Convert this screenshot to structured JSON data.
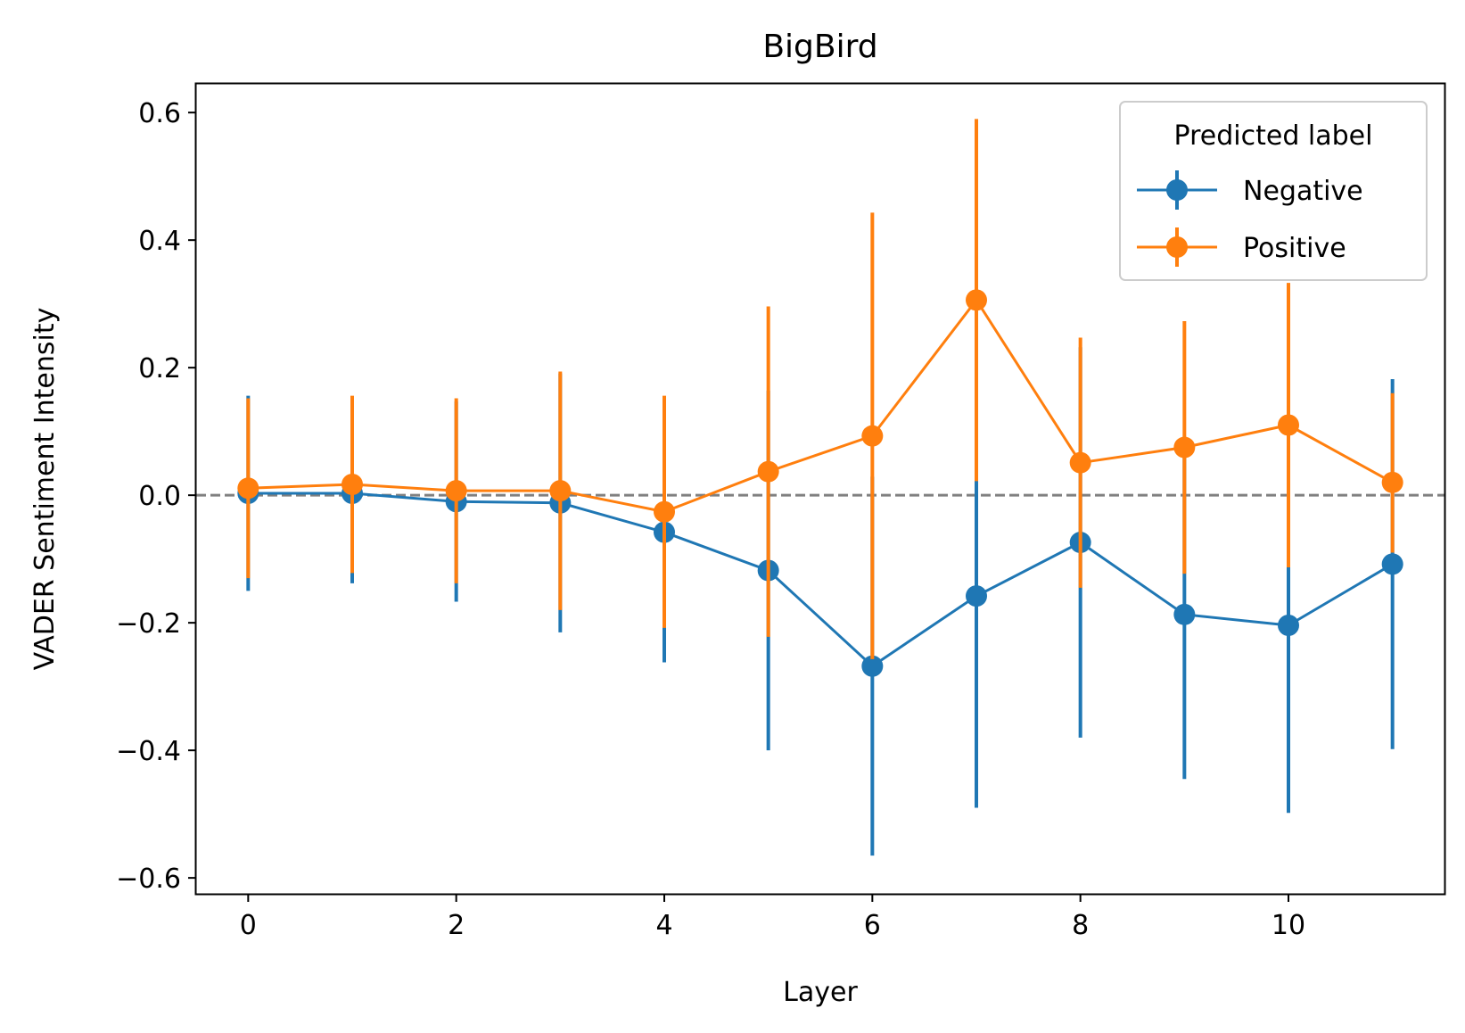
{
  "chart_data": {
    "type": "line",
    "title": "BigBird",
    "xlabel": "Layer",
    "ylabel": "VADER Sentiment Intensity",
    "xlim": [
      -0.5,
      11.5
    ],
    "ylim": [
      -0.625,
      0.645
    ],
    "xticks": [
      0,
      2,
      4,
      6,
      8,
      10
    ],
    "xtick_labels": [
      "0",
      "2",
      "4",
      "6",
      "8",
      "10"
    ],
    "yticks": [
      -0.6,
      -0.4,
      -0.2,
      0.0,
      0.2,
      0.4,
      0.6
    ],
    "ytick_labels": [
      "−0.6",
      "−0.4",
      "−0.2",
      "0.0",
      "0.2",
      "0.4",
      "0.6"
    ],
    "reference_line": {
      "y": 0.0,
      "style": "dashed",
      "color": "#808080"
    },
    "grid": false,
    "legend": {
      "title": "Predicted label",
      "position": "top-right"
    },
    "x": [
      0,
      1,
      2,
      3,
      4,
      5,
      6,
      7,
      8,
      9,
      10,
      11
    ],
    "series": [
      {
        "name": "Negative",
        "color": "#1f77b4",
        "values": [
          0.003,
          0.003,
          -0.01,
          -0.012,
          -0.058,
          -0.118,
          -0.268,
          -0.158,
          -0.074,
          -0.187,
          -0.204,
          -0.108
        ],
        "err_low": [
          -0.15,
          -0.138,
          -0.167,
          -0.215,
          -0.262,
          -0.4,
          -0.565,
          -0.49,
          -0.38,
          -0.445,
          -0.498,
          -0.398
        ],
        "err_high": [
          0.156,
          0.144,
          0.147,
          0.191,
          0.146,
          0.164,
          0.029,
          0.174,
          0.232,
          0.071,
          0.09,
          0.182
        ]
      },
      {
        "name": "Positive",
        "color": "#ff7f0e",
        "values": [
          0.011,
          0.017,
          0.007,
          0.007,
          -0.026,
          0.037,
          0.093,
          0.306,
          0.051,
          0.075,
          0.11,
          0.02
        ],
        "err_low": [
          -0.13,
          -0.122,
          -0.138,
          -0.18,
          -0.208,
          -0.222,
          -0.257,
          0.022,
          -0.145,
          -0.123,
          -0.113,
          -0.09
        ],
        "err_high": [
          0.152,
          0.156,
          0.152,
          0.194,
          0.156,
          0.296,
          0.443,
          0.59,
          0.247,
          0.273,
          0.333,
          0.16
        ]
      }
    ]
  }
}
